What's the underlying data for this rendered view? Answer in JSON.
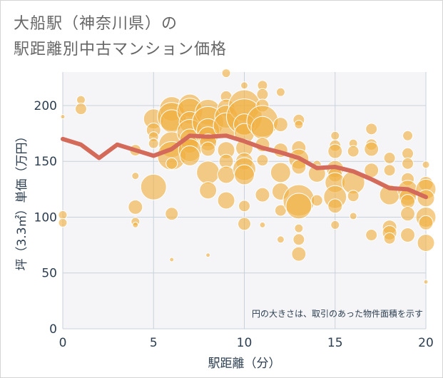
{
  "title": {
    "line1": "大船駅（神奈川県）の",
    "line2": "駅距離別中古マンション価格"
  },
  "note": "円の大きさは、取引のあった物件面積を示す",
  "colors": {
    "bubble_fill": "#f0b040",
    "bubble_stroke": "#ffffff",
    "line": "#d46a5a",
    "plot_bg": "#f5f5f7",
    "grid": "#c8d2dc",
    "axis_text": "#2c3e50",
    "title_text": "#666666"
  },
  "chart_data": {
    "type": "scatter",
    "xlabel": "駅距離（分）",
    "ylabel": "坪（3.3㎡）単価（万円）",
    "xlim": [
      0,
      20
    ],
    "ylim": [
      0,
      230
    ],
    "xticks": [
      0,
      5,
      10,
      15,
      20
    ],
    "yticks": [
      0,
      50,
      100,
      150,
      200
    ],
    "grid": true,
    "line_series": {
      "x": [
        0,
        1,
        2,
        3,
        4,
        5,
        6,
        7,
        8,
        9,
        10,
        11,
        12,
        13,
        14,
        15,
        16,
        17,
        18,
        19,
        20
      ],
      "y": [
        170,
        165,
        153,
        165,
        160,
        155,
        161,
        173,
        172,
        173,
        168,
        162,
        158,
        153,
        144,
        145,
        141,
        134,
        126,
        125,
        118
      ]
    },
    "bubbles": {
      "x": [
        0,
        0,
        0,
        1,
        1,
        4,
        4,
        4,
        4,
        4,
        5,
        5,
        5,
        5,
        5,
        6,
        6,
        6,
        6,
        6,
        6,
        6,
        6,
        7,
        7,
        7,
        7,
        7,
        7,
        7,
        7,
        8,
        8,
        8,
        8,
        8,
        8,
        8,
        8,
        8,
        9,
        9,
        9,
        9,
        9,
        9,
        9,
        9,
        9,
        10,
        10,
        10,
        10,
        10,
        10,
        10,
        10,
        10,
        10,
        10,
        11,
        11,
        11,
        11,
        11,
        11,
        11,
        11,
        11,
        12,
        12,
        12,
        12,
        12,
        12,
        12,
        13,
        13,
        13,
        13,
        13,
        13,
        13,
        13,
        13,
        13,
        14,
        14,
        14,
        15,
        15,
        15,
        15,
        15,
        15,
        15,
        15,
        15,
        16,
        16,
        16,
        16,
        16,
        17,
        17,
        17,
        17,
        17,
        18,
        18,
        18,
        18,
        18,
        18,
        19,
        19,
        19,
        19,
        19,
        19,
        19,
        19,
        19,
        20,
        20,
        20,
        20,
        20,
        20,
        20,
        20
      ],
      "y": [
        190,
        102,
        95,
        205,
        197,
        160,
        137,
        109,
        96,
        93,
        188,
        178,
        172,
        166,
        127,
        197,
        190,
        186,
        165,
        155,
        148,
        103,
        62,
        200,
        195,
        185,
        176,
        170,
        165,
        160,
        155,
        194,
        185,
        178,
        172,
        167,
        161,
        140,
        124,
        66,
        229,
        208,
        198,
        190,
        182,
        160,
        150,
        138,
        115,
        218,
        200,
        190,
        183,
        175,
        162,
        150,
        143,
        138,
        110,
        94,
        218,
        210,
        200,
        186,
        180,
        165,
        151,
        120,
        93,
        212,
        183,
        160,
        140,
        123,
        106,
        80,
        187,
        183,
        162,
        152,
        115,
        110,
        90,
        80,
        67,
        145,
        147,
        139,
        115,
        173,
        164,
        159,
        143,
        138,
        131,
        118,
        110,
        93,
        166,
        159,
        131,
        119,
        101,
        179,
        165,
        161,
        142,
        84,
        153,
        142,
        120,
        91,
        86,
        81,
        173,
        157,
        148,
        134,
        124,
        118,
        114,
        103,
        84,
        147,
        130,
        125,
        117,
        100,
        95,
        77,
        42
      ],
      "size": [
        3,
        6,
        6,
        6,
        8,
        8,
        5,
        10,
        6,
        4,
        14,
        10,
        7,
        7,
        18,
        17,
        20,
        16,
        18,
        20,
        8,
        9,
        3,
        16,
        18,
        15,
        18,
        14,
        12,
        16,
        14,
        18,
        22,
        16,
        14,
        12,
        10,
        16,
        12,
        3,
        6,
        8,
        12,
        16,
        18,
        12,
        10,
        12,
        12,
        5,
        22,
        25,
        15,
        14,
        12,
        12,
        16,
        14,
        8,
        9,
        7,
        8,
        9,
        22,
        16,
        10,
        8,
        10,
        4,
        6,
        10,
        10,
        14,
        12,
        8,
        5,
        8,
        6,
        10,
        14,
        22,
        18,
        6,
        8,
        10,
        10,
        6,
        12,
        8,
        6,
        8,
        10,
        12,
        10,
        14,
        16,
        10,
        6,
        6,
        8,
        16,
        8,
        5,
        8,
        8,
        10,
        10,
        8,
        8,
        8,
        14,
        10,
        10,
        8,
        7,
        8,
        8,
        9,
        14,
        12,
        10,
        10,
        10,
        5,
        10,
        14,
        12,
        14,
        10,
        12,
        3
      ]
    }
  }
}
